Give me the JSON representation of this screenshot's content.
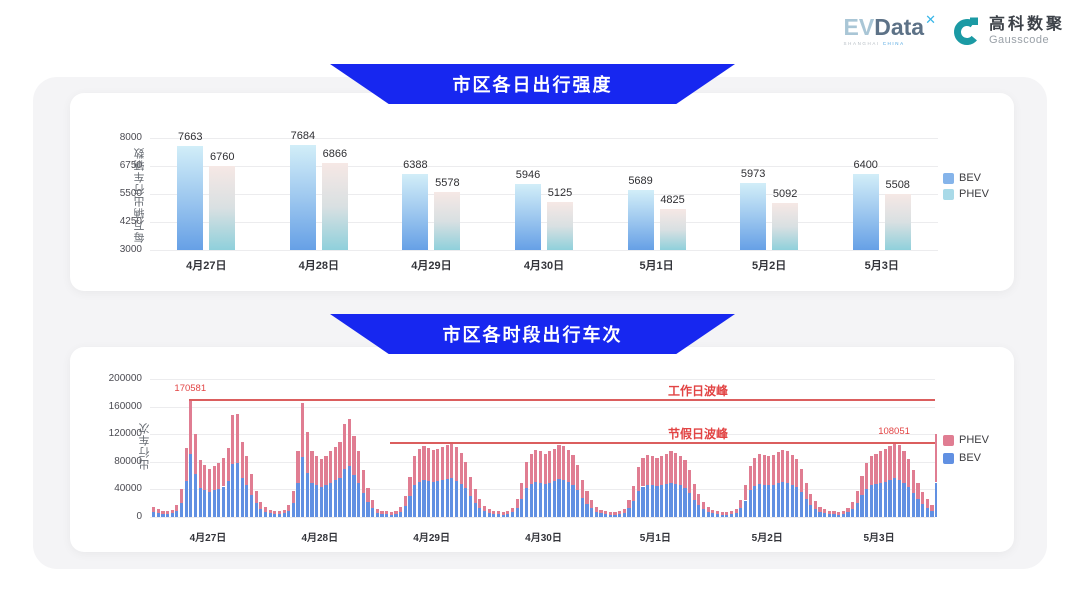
{
  "header": {
    "evdata": {
      "ev": "EV",
      "data": "Data",
      "sup": "✕",
      "sub1": "SHANGHAI",
      "sub2": "CHINA"
    },
    "gausscode": {
      "cn": "高科数聚",
      "en": "Gausscode"
    }
  },
  "colors": {
    "banner_blue": "#1727f0",
    "annotation_red": "#e24444",
    "peak_line_red": "#db5e5e",
    "bev_daily_legend": "#85b4ea",
    "phev_daily_legend": "#a9dae8",
    "phev_hourly": "#e07d92",
    "bev_hourly": "#6190e2"
  },
  "chart_data": [
    {
      "type": "bar",
      "title": "市区各日出行强度",
      "ylabel": "每万辆出行车辆数",
      "ylim": [
        3000,
        8000
      ],
      "yticks": [
        3000,
        4250,
        5500,
        6750,
        8000
      ],
      "grid": true,
      "legend_position": "right",
      "legend": [
        "BEV",
        "PHEV"
      ],
      "categories": [
        "4月27日",
        "4月28日",
        "4月29日",
        "4月30日",
        "5月1日",
        "5月2日",
        "5月3日"
      ],
      "series": [
        {
          "name": "BEV",
          "legend_color": "#85b4ea",
          "gradient": [
            "#d2eef8",
            "#9ec8ef",
            "#66a0e6"
          ],
          "values": [
            7663,
            7684,
            6388,
            5946,
            5689,
            5973,
            6400
          ]
        },
        {
          "name": "PHEV",
          "legend_color": "#a9dae8",
          "gradient": [
            "#f6e8e5",
            "#d9e0e2",
            "#8fd0db"
          ],
          "values": [
            6760,
            6866,
            5578,
            5125,
            4825,
            5092,
            5508
          ]
        }
      ]
    },
    {
      "type": "bar",
      "stacked": true,
      "title": "市区各时段出行车次",
      "ylabel": "出行车次",
      "ylim": [
        0,
        200000
      ],
      "yticks": [
        0,
        40000,
        80000,
        120000,
        160000,
        200000
      ],
      "grid": true,
      "legend_position": "right",
      "legend": [
        "PHEV",
        "BEV"
      ],
      "categories": [
        "4月27日",
        "4月28日",
        "4月29日",
        "4月30日",
        "5月1日",
        "5月2日",
        "5月3日"
      ],
      "hours_per_day": 24,
      "series": [
        {
          "name": "BEV",
          "color": "#6190e2",
          "days": [
            [
              7800,
              5700,
              4700,
              4200,
              5200,
              9400,
              20800,
              52000,
              90581,
              62400,
              42600,
              39000,
              36400,
              38500,
              40600,
              44200,
              52000,
              77000,
              78000,
              56200,
              45800,
              32200,
              19800,
              11400
            ],
            [
              7300,
              5200,
              4700,
              4200,
              5200,
              8800,
              19800,
              49400,
              87500,
              64000,
              49400,
              45800,
              43700,
              45800,
              49400,
              53000,
              56200,
              70200,
              73800,
              61400,
              49400,
              35400,
              21800,
              13000
            ],
            [
              6200,
              4700,
              4200,
              3600,
              4700,
              7300,
              15600,
              30200,
              45800,
              51000,
              53600,
              52000,
              50400,
              51500,
              53000,
              54600,
              56051,
              52500,
              48400,
              41600,
              30200,
              20800,
              13500,
              8300
            ],
            [
              5700,
              4700,
              4200,
              3600,
              4700,
              6800,
              13500,
              26000,
              41600,
              47800,
              50400,
              49400,
              47800,
              49400,
              51500,
              54600,
              53600,
              50400,
              46800,
              39500,
              28100,
              19200,
              12500,
              7800
            ],
            [
              5200,
              4200,
              3600,
              3600,
              4200,
              6200,
              12500,
              23400,
              37400,
              44200,
              46800,
              45800,
              44700,
              45800,
              47800,
              49400,
              48400,
              45800,
              42600,
              35400,
              25000,
              17200,
              11400,
              7300
            ],
            [
              5200,
              4200,
              3600,
              3600,
              4200,
              6200,
              13000,
              23900,
              38500,
              44700,
              47800,
              46800,
              45800,
              46800,
              48900,
              50400,
              49400,
              46800,
              43700,
              36400,
              26000,
              17700,
              12000,
              7300
            ],
            [
              5700,
              4700,
              4200,
              3600,
              4700,
              6800,
              11400,
              19800,
              31200,
              40600,
              45800,
              47800,
              49900,
              51000,
              53600,
              56051,
              54100,
              49900,
              43700,
              35400,
              26000,
              18700,
              13500,
              9400
            ]
          ]
        },
        {
          "name": "PHEV",
          "color": "#e07d92",
          "days": [
            [
              7200,
              5300,
              4300,
              3800,
              4800,
              8600,
              19200,
              48000,
              80000,
              57600,
              39400,
              36000,
              33600,
              35500,
              37400,
              40800,
              48000,
              71000,
              72000,
              51800,
              42200,
              29800,
              18200,
              10600
            ],
            [
              6700,
              4800,
              4300,
              3800,
              4800,
              8200,
              18200,
              45600,
              77500,
              59000,
              45600,
              42200,
              40300,
              42200,
              45600,
              49000,
              51800,
              64800,
              68200,
              56600,
              45600,
              32600,
              20200,
              12000
            ],
            [
              5800,
              4300,
              3800,
              3400,
              4300,
              6700,
              14400,
              27800,
              42200,
              47000,
              49400,
              48000,
              46600,
              47500,
              49000,
              50400,
              52000,
              48500,
              44600,
              38400,
              27800,
              19200,
              12500,
              7700
            ],
            [
              5300,
              4300,
              3800,
              3400,
              4300,
              6200,
              12500,
              24000,
              38400,
              44200,
              46600,
              45600,
              44200,
              45600,
              47500,
              50400,
              49400,
              46600,
              43200,
              36500,
              25900,
              17800,
              11500,
              7200
            ],
            [
              4800,
              3800,
              3400,
              3400,
              3800,
              5800,
              11500,
              21600,
              34600,
              40800,
              43200,
              42200,
              41300,
              42200,
              44200,
              45600,
              44600,
              42200,
              39400,
              32600,
              23000,
              15800,
              10600,
              6700
            ],
            [
              4800,
              3800,
              3400,
              3400,
              3800,
              5800,
              12000,
              22100,
              35500,
              41300,
              44200,
              43200,
              42200,
              43200,
              45100,
              46600,
              45600,
              43200,
              40300,
              33600,
              24000,
              16300,
              11000,
              6700
            ],
            [
              5300,
              4300,
              3800,
              3400,
              4300,
              6200,
              10600,
              18200,
              28800,
              37400,
              42200,
              44200,
              46100,
              47000,
              49400,
              52000,
              49900,
              46100,
              40300,
              32600,
              24000,
              17300,
              12500,
              8600
            ]
          ]
        }
      ],
      "next_day_partial": {
        "BEV": 50000,
        "PHEV": 70000
      },
      "peak_lines": [
        {
          "label": "工作日波峰",
          "value": 170581,
          "value_text": "170581",
          "start": {
            "day": 0,
            "hour": 8
          },
          "value_anchor": {
            "day": 0,
            "hour": 8
          }
        },
        {
          "label": "节假日波峰",
          "value": 108051,
          "value_text": "108051",
          "start": {
            "day": 2,
            "hour": 3
          },
          "value_anchor": {
            "day": 6,
            "hour": 15
          }
        }
      ]
    }
  ]
}
